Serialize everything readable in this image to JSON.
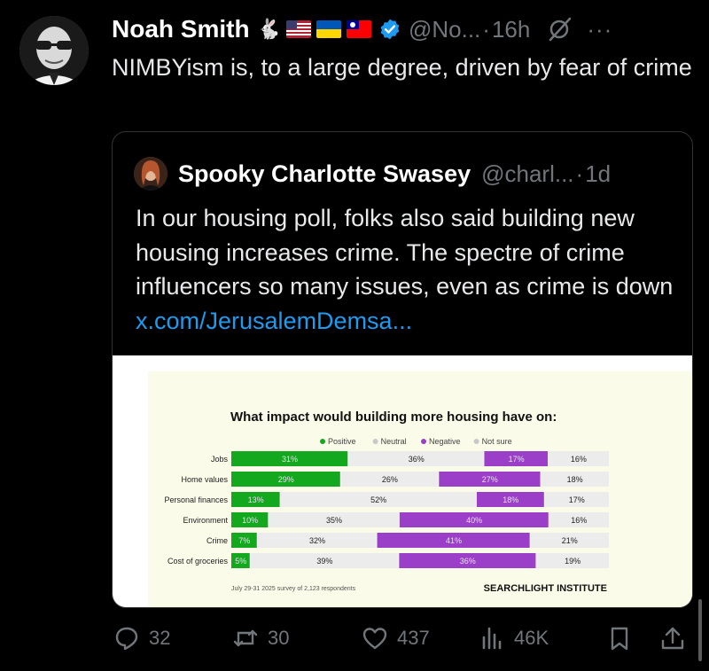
{
  "post": {
    "author_name": "Noah Smith",
    "author_emoji": "🐇",
    "handle": "@No...",
    "separator": "·",
    "time": "16h",
    "more_label": "···",
    "text": "NIMBYism is, to a large degree, driven by fear of crime"
  },
  "quoted": {
    "author_name": "Spooky Charlotte Swasey",
    "handle": "@charl...",
    "separator": "·",
    "time": "1d",
    "text": "In our housing poll, folks also said building new housing increases crime.  The spectre of crime influencers so many issues, even as crime is down ",
    "link": "x.com/JerusalemDemsa..."
  },
  "chart_data": {
    "type": "bar",
    "stacked": true,
    "orientation": "horizontal",
    "title": "What impact would building more housing have on:",
    "categories": [
      "Jobs",
      "Home values",
      "Personal finances",
      "Environment",
      "Crime",
      "Cost of groceries"
    ],
    "series": [
      {
        "name": "Positive",
        "color": "#14a81f",
        "values": [
          31,
          29,
          13,
          10,
          7,
          5
        ]
      },
      {
        "name": "Neutral",
        "color": "#ececec",
        "values": [
          36,
          26,
          52,
          35,
          32,
          39
        ]
      },
      {
        "name": "Negative",
        "color": "#9b3fc9",
        "values": [
          17,
          27,
          18,
          40,
          41,
          36
        ]
      },
      {
        "name": "Not sure",
        "color": "#ececec",
        "values": [
          16,
          18,
          17,
          16,
          21,
          19
        ]
      }
    ],
    "value_suffix": "%",
    "legend_position": "top",
    "footnote": "July 29-31 2025 survey of 2,123 respondents",
    "brand": "SEARCHLIGHT INSTITUTE"
  },
  "actions": {
    "replies": "32",
    "reposts": "30",
    "likes": "437",
    "views": "46K"
  },
  "colors": {
    "background": "#000000",
    "text": "#e7e9ea",
    "muted": "#71767b",
    "link": "#1d9bf0",
    "verified": "#1d9bf0"
  },
  "icons": {
    "reply": "reply-icon",
    "repost": "repost-icon",
    "like": "heart-icon",
    "views": "views-icon",
    "bookmark": "bookmark-icon",
    "share": "share-icon",
    "grok": "grok-icon",
    "verified": "verified-badge-icon"
  }
}
